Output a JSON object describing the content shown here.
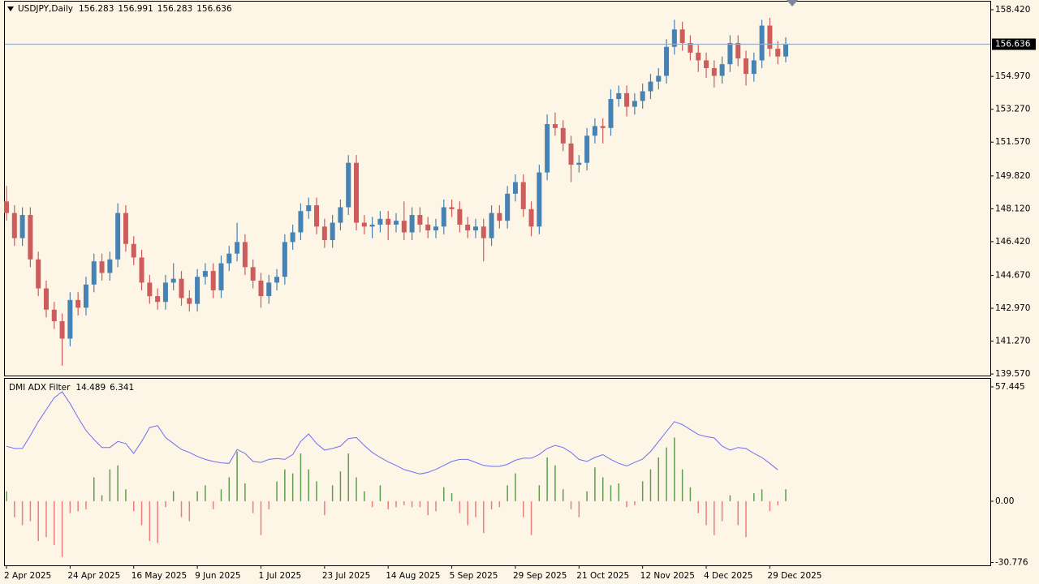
{
  "chart_data": [
    {
      "type": "candlestick",
      "title": "USDJPY,Daily",
      "header_values": [
        156.283,
        156.991,
        156.283,
        156.636
      ],
      "categories": [
        "2 Apr 2025",
        null,
        null,
        null,
        null,
        null,
        null,
        null,
        "24 Apr 2025",
        null,
        null,
        null,
        null,
        null,
        null,
        null,
        "16 May 2025",
        null,
        null,
        null,
        null,
        null,
        null,
        null,
        "9 Jun 2025",
        null,
        null,
        null,
        null,
        null,
        null,
        null,
        "1 Jul 2025",
        null,
        null,
        null,
        null,
        null,
        null,
        null,
        "23 Jul 2025",
        null,
        null,
        null,
        null,
        null,
        null,
        null,
        "14 Aug 2025",
        null,
        null,
        null,
        null,
        null,
        null,
        null,
        "5 Sep 2025",
        null,
        null,
        null,
        null,
        null,
        null,
        null,
        "29 Sep 2025",
        null,
        null,
        null,
        null,
        null,
        null,
        null,
        "21 Oct 2025",
        null,
        null,
        null,
        null,
        null,
        null,
        null,
        "12 Nov 2025",
        null,
        null,
        null,
        null,
        null,
        null,
        null,
        "4 Dec 2025",
        null,
        null,
        null,
        null,
        null,
        null,
        null,
        "29 Dec 2025",
        null,
        null
      ],
      "open": [
        148.5,
        147.9,
        146.6,
        147.8,
        145.5,
        144.0,
        142.9,
        142.3,
        141.4,
        143.4,
        143.0,
        144.2,
        145.4,
        144.8,
        145.5,
        147.9,
        146.3,
        145.6,
        144.3,
        143.6,
        143.3,
        144.3,
        144.5,
        143.5,
        143.2,
        144.6,
        144.9,
        143.9,
        145.3,
        145.8,
        146.4,
        145.1,
        144.4,
        143.6,
        144.3,
        144.6,
        146.4,
        146.9,
        148.0,
        148.3,
        147.2,
        146.5,
        147.4,
        148.2,
        150.5,
        147.4,
        147.2,
        147.3,
        147.6,
        147.3,
        147.5,
        146.9,
        147.8,
        147.3,
        147.0,
        147.2,
        148.2,
        148.1,
        147.3,
        147.0,
        147.2,
        146.6,
        147.9,
        147.5,
        148.9,
        149.5,
        148.1,
        147.2,
        150.0,
        152.5,
        152.3,
        151.5,
        150.4,
        150.5,
        151.9,
        152.4,
        152.3,
        153.8,
        154.1,
        153.4,
        153.7,
        154.2,
        154.7,
        155.0,
        156.5,
        157.4,
        156.7,
        156.2,
        155.8,
        155.4,
        155.0,
        155.6,
        156.7,
        155.9,
        155.1,
        155.8,
        157.6,
        156.4,
        156.0
      ],
      "high": [
        149.3,
        148.3,
        148.2,
        148.2,
        145.9,
        144.4,
        143.3,
        142.7,
        143.8,
        143.8,
        144.6,
        145.8,
        145.8,
        145.9,
        148.4,
        148.3,
        146.7,
        146.0,
        144.7,
        144.0,
        144.7,
        145.3,
        144.9,
        143.9,
        145.0,
        145.3,
        145.3,
        145.7,
        146.2,
        147.4,
        146.8,
        145.5,
        144.8,
        144.7,
        145.0,
        146.8,
        147.3,
        148.4,
        148.7,
        148.7,
        147.6,
        147.8,
        148.6,
        150.9,
        150.9,
        147.8,
        147.7,
        148.0,
        148.0,
        147.9,
        148.5,
        148.2,
        148.2,
        147.7,
        147.6,
        148.6,
        148.6,
        148.5,
        147.7,
        147.6,
        147.6,
        148.3,
        148.3,
        149.3,
        149.9,
        149.9,
        148.5,
        150.4,
        153.0,
        153.1,
        152.7,
        151.9,
        150.9,
        152.3,
        152.8,
        152.8,
        154.3,
        154.5,
        154.5,
        154.1,
        154.6,
        155.1,
        155.4,
        156.9,
        157.9,
        157.8,
        157.1,
        156.6,
        156.2,
        155.8,
        156.0,
        157.1,
        157.1,
        156.3,
        156.2,
        157.9,
        158.0,
        156.8,
        157.0
      ],
      "low": [
        147.5,
        146.2,
        146.2,
        145.1,
        143.6,
        142.5,
        141.9,
        140.0,
        141.0,
        142.6,
        142.6,
        143.8,
        144.4,
        144.4,
        145.1,
        145.9,
        145.2,
        143.9,
        143.2,
        142.9,
        142.9,
        143.9,
        143.1,
        142.8,
        142.8,
        144.2,
        143.5,
        143.5,
        144.9,
        145.4,
        144.7,
        144.0,
        143.0,
        143.2,
        143.9,
        144.2,
        146.0,
        146.5,
        147.6,
        146.8,
        146.1,
        146.1,
        147.0,
        147.8,
        147.0,
        146.8,
        146.6,
        146.9,
        146.5,
        146.9,
        146.5,
        146.5,
        146.9,
        146.6,
        146.6,
        146.8,
        147.7,
        146.9,
        146.6,
        146.6,
        145.4,
        146.2,
        147.1,
        147.1,
        148.5,
        147.7,
        146.7,
        146.8,
        149.6,
        151.9,
        151.1,
        149.5,
        150.0,
        150.1,
        151.5,
        151.5,
        151.9,
        153.4,
        152.9,
        153.0,
        153.3,
        153.8,
        154.3,
        154.6,
        156.1,
        156.3,
        155.8,
        155.2,
        154.9,
        154.4,
        154.6,
        155.2,
        155.5,
        154.5,
        154.7,
        155.4,
        156.0,
        155.6,
        155.7
      ],
      "close": [
        147.9,
        146.6,
        147.8,
        145.5,
        144.0,
        142.9,
        142.3,
        141.4,
        143.4,
        143.0,
        144.2,
        145.4,
        144.8,
        145.5,
        147.9,
        146.3,
        145.6,
        144.3,
        143.6,
        143.3,
        144.3,
        144.5,
        143.5,
        143.2,
        144.6,
        144.9,
        143.9,
        145.3,
        145.8,
        146.4,
        145.1,
        144.4,
        143.6,
        144.3,
        144.6,
        146.4,
        146.9,
        148.0,
        148.3,
        147.2,
        146.5,
        147.4,
        148.2,
        150.5,
        147.4,
        147.2,
        147.3,
        147.6,
        147.3,
        147.5,
        146.9,
        147.8,
        147.3,
        147.0,
        147.2,
        148.2,
        148.1,
        147.3,
        147.0,
        147.2,
        146.6,
        147.9,
        147.5,
        148.9,
        149.5,
        148.1,
        147.2,
        150.0,
        152.5,
        152.3,
        151.5,
        150.4,
        150.5,
        151.9,
        152.4,
        152.3,
        153.8,
        154.1,
        153.4,
        153.7,
        154.2,
        154.7,
        155.0,
        156.5,
        157.4,
        156.7,
        156.2,
        155.8,
        155.4,
        155.0,
        155.6,
        156.7,
        155.9,
        155.1,
        155.8,
        157.6,
        156.4,
        156.0,
        156.636
      ],
      "up_color": "#4682b4",
      "down_color": "#cd5c5c",
      "ylim": [
        139.49,
        158.84
      ],
      "yticks": [
        {
          "value": 139.57,
          "label": "139.570"
        },
        {
          "value": 141.27,
          "label": "141.270"
        },
        {
          "value": 142.97,
          "label": "142.970"
        },
        {
          "value": 144.67,
          "label": "144.670"
        },
        {
          "value": 146.42,
          "label": "146.420"
        },
        {
          "value": 148.12,
          "label": "148.120"
        },
        {
          "value": 149.82,
          "label": "149.820"
        },
        {
          "value": 151.57,
          "label": "151.570"
        },
        {
          "value": 153.27,
          "label": "153.270"
        },
        {
          "value": 154.97,
          "label": "154.970"
        },
        {
          "value": 158.42,
          "label": "158.420"
        }
      ],
      "current_price": 156.636,
      "price_line_color": "#98aec6"
    },
    {
      "type": "adx",
      "title": "DMI ADX Filter",
      "header_values": [
        14.489,
        6.341
      ],
      "line": {
        "color": "#7070ee",
        "values": [
          27.6,
          26.5,
          26.5,
          33,
          40,
          46,
          52,
          55,
          49,
          42,
          35.5,
          31,
          27,
          27,
          30,
          29,
          24,
          30,
          37,
          38,
          32,
          29,
          26,
          24.5,
          22.5,
          21,
          20,
          19.3,
          19,
          26,
          24,
          20,
          19.5,
          21,
          21.5,
          21,
          23.5,
          30,
          33.8,
          29,
          25.7,
          26.5,
          27.7,
          31.5,
          32,
          28,
          24.5,
          22,
          19.8,
          18,
          15.9,
          14.8,
          13.7,
          14.5,
          16,
          18,
          20,
          21,
          21,
          19.5,
          18,
          17.5,
          17.5,
          18.5,
          20.6,
          21.6,
          21.6,
          23.5,
          26.5,
          28,
          27,
          24.5,
          21,
          20,
          22,
          23.4,
          21,
          19,
          17.7,
          19.5,
          21.2,
          25,
          30,
          35,
          40,
          38.5,
          36,
          33.5,
          32.5,
          31.8,
          27.7,
          25.7,
          27,
          26.5,
          24,
          22,
          19,
          15.8,
          null
        ]
      },
      "histogram": {
        "up_color": "#5e9e4e",
        "down_color": "#ee7d7d",
        "values": [
          5,
          -8,
          -12,
          -10,
          -20,
          -18,
          -22,
          -28,
          -6,
          -5,
          -4,
          12,
          3,
          16,
          18,
          6,
          -5,
          -12,
          -20,
          -21,
          -3,
          5,
          -8,
          -10,
          5,
          8,
          -4,
          6,
          12,
          25,
          9,
          -6,
          -17,
          -4,
          10,
          16,
          14,
          24,
          16,
          10,
          -7,
          8,
          15,
          24,
          12,
          5,
          -3,
          8,
          -4,
          -3,
          -2,
          -3,
          -3,
          -7,
          -5,
          7,
          4,
          -6,
          -12,
          -8,
          -16,
          -4,
          -3,
          8,
          14,
          -8,
          -17,
          8,
          22,
          18,
          6,
          -4,
          -8,
          5,
          17,
          12,
          8,
          9,
          -3,
          -2,
          10,
          16,
          22,
          27,
          32,
          16,
          7,
          -6,
          -12,
          -17,
          -10,
          3,
          -12,
          -18,
          4,
          6,
          -5,
          -2,
          6
        ]
      },
      "ylim": [
        -32.2,
        61.5
      ],
      "yticks": [
        57.445,
        {
          "value": 0,
          "label": "0.00"
        },
        -30.776
      ]
    }
  ]
}
